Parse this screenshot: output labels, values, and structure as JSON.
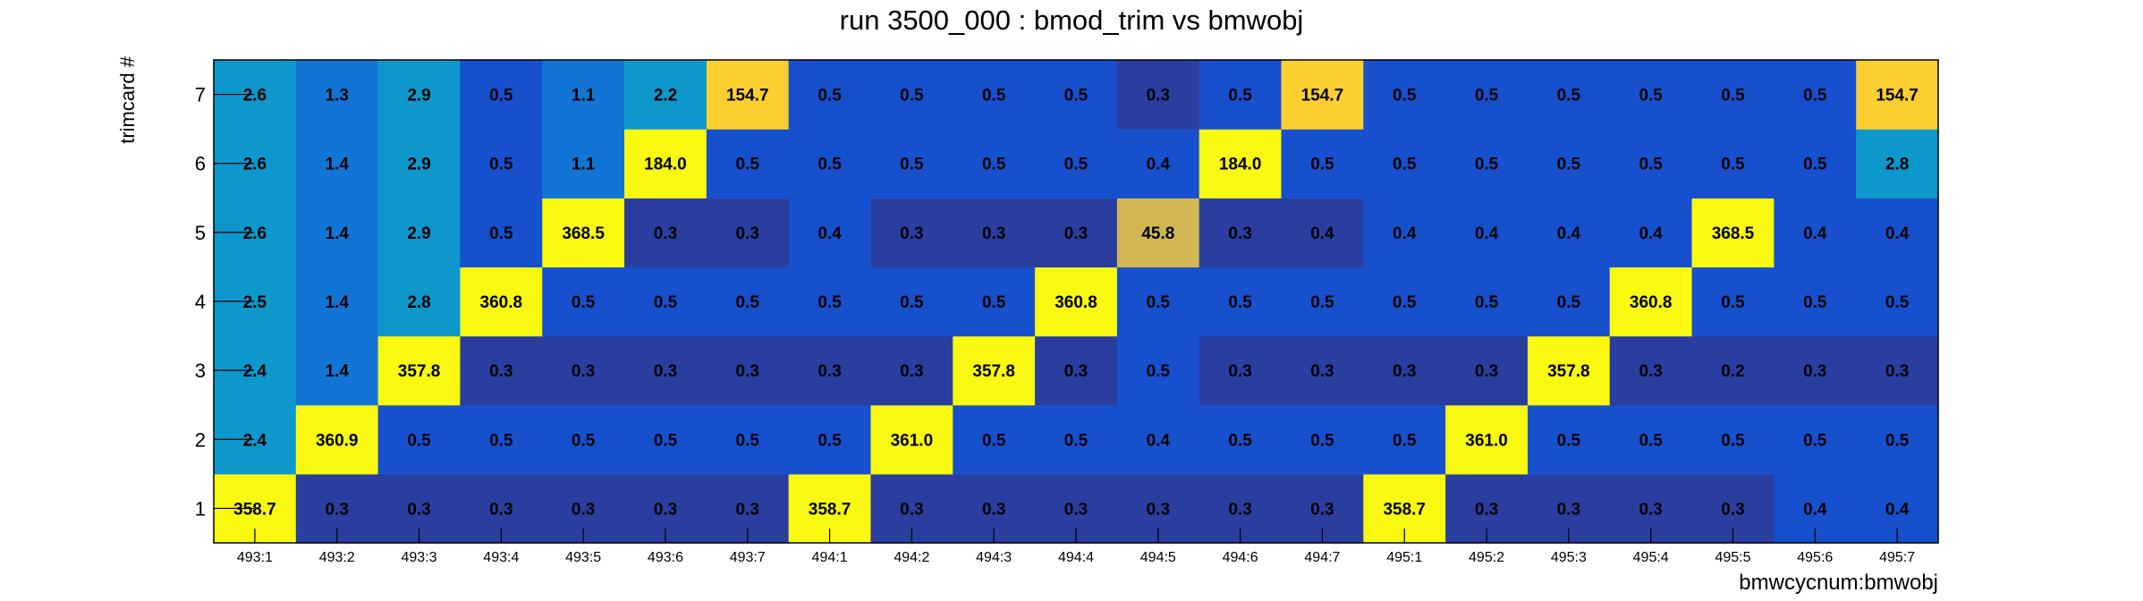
{
  "chart_data": {
    "type": "heatmap",
    "title": "run 3500_000 : bmod_trim vs bmwobj",
    "xlabel": "bmwcycnum:bmwobj",
    "ylabel": "trimcard #",
    "x_categories": [
      "493:1",
      "493:2",
      "493:3",
      "493:4",
      "493:5",
      "493:6",
      "493:7",
      "494:1",
      "494:2",
      "494:3",
      "494:4",
      "494:5",
      "494:6",
      "494:7",
      "495:1",
      "495:2",
      "495:3",
      "495:4",
      "495:5",
      "495:6",
      "495:7"
    ],
    "y_categories": [
      "1",
      "2",
      "3",
      "4",
      "5",
      "6",
      "7"
    ],
    "value_labels": [
      [
        "358.7",
        "0.3",
        "0.3",
        "0.3",
        "0.3",
        "0.3",
        "0.3",
        "358.7",
        "0.3",
        "0.3",
        "0.3",
        "0.3",
        "0.3",
        "0.3",
        "358.7",
        "0.3",
        "0.3",
        "0.3",
        "0.3",
        "0.4",
        "0.4"
      ],
      [
        "2.4",
        "360.9",
        "0.5",
        "0.5",
        "0.5",
        "0.5",
        "0.5",
        "0.5",
        "361.0",
        "0.5",
        "0.5",
        "0.4",
        "0.5",
        "0.5",
        "0.5",
        "361.0",
        "0.5",
        "0.5",
        "0.5",
        "0.5",
        "0.5"
      ],
      [
        "2.4",
        "1.4",
        "357.8",
        "0.3",
        "0.3",
        "0.3",
        "0.3",
        "0.3",
        "0.3",
        "357.8",
        "0.3",
        "0.5",
        "0.3",
        "0.3",
        "0.3",
        "0.3",
        "357.8",
        "0.3",
        "0.2",
        "0.3",
        "0.3"
      ],
      [
        "2.5",
        "1.4",
        "2.8",
        "360.8",
        "0.5",
        "0.5",
        "0.5",
        "0.5",
        "0.5",
        "0.5",
        "360.8",
        "0.5",
        "0.5",
        "0.5",
        "0.5",
        "0.5",
        "0.5",
        "360.8",
        "0.5",
        "0.5",
        "0.5"
      ],
      [
        "2.6",
        "1.4",
        "2.9",
        "0.5",
        "368.5",
        "0.3",
        "0.3",
        "0.4",
        "0.3",
        "0.3",
        "0.3",
        "45.8",
        "0.3",
        "0.4",
        "0.4",
        "0.4",
        "0.4",
        "0.4",
        "368.5",
        "0.4",
        "0.4"
      ],
      [
        "2.6",
        "1.4",
        "2.9",
        "0.5",
        "1.1",
        "184.0",
        "0.5",
        "0.5",
        "0.5",
        "0.5",
        "0.5",
        "0.4",
        "184.0",
        "0.5",
        "0.5",
        "0.5",
        "0.5",
        "0.5",
        "0.5",
        "0.5",
        "2.8"
      ],
      [
        "2.6",
        "1.3",
        "2.9",
        "0.5",
        "1.1",
        "2.2",
        "154.7",
        "0.5",
        "0.5",
        "0.5",
        "0.5",
        "0.3",
        "0.5",
        "154.7",
        "0.5",
        "0.5",
        "0.5",
        "0.5",
        "0.5",
        "0.5",
        "154.7"
      ]
    ],
    "cell_colors": [
      [
        "#f8f810",
        "#2a3ea0",
        "#2a3ea0",
        "#2a3ea0",
        "#2a3ea0",
        "#2a3ea0",
        "#2a3ea0",
        "#f8f810",
        "#2a3ea0",
        "#2a3ea0",
        "#2a3ea0",
        "#2a3ea0",
        "#2a3ea0",
        "#2a3ea0",
        "#f8f810",
        "#2a3ea0",
        "#2a3ea0",
        "#2a3ea0",
        "#2a3ea0",
        "#1750cc",
        "#1750cc"
      ],
      [
        "#0e97cb",
        "#f8f810",
        "#1750cc",
        "#1750cc",
        "#1750cc",
        "#1750cc",
        "#1750cc",
        "#1750cc",
        "#f8f810",
        "#1750cc",
        "#1750cc",
        "#1750cc",
        "#1750cc",
        "#1750cc",
        "#1750cc",
        "#f8f810",
        "#1750cc",
        "#1750cc",
        "#1750cc",
        "#1750cc",
        "#1750cc"
      ],
      [
        "#0e97cb",
        "#1275d6",
        "#f8f810",
        "#2a3ea0",
        "#2a3ea0",
        "#2a3ea0",
        "#2a3ea0",
        "#2a3ea0",
        "#2a3ea0",
        "#f8f810",
        "#2a3ea0",
        "#1750cc",
        "#2a3ea0",
        "#2a3ea0",
        "#2a3ea0",
        "#2a3ea0",
        "#f8f810",
        "#2a3ea0",
        "#2a3ea0",
        "#2a3ea0",
        "#2a3ea0"
      ],
      [
        "#0e97cb",
        "#1275d6",
        "#0e97cb",
        "#f8f810",
        "#1750cc",
        "#1750cc",
        "#1750cc",
        "#1750cc",
        "#1750cc",
        "#1750cc",
        "#f8f810",
        "#1750cc",
        "#1750cc",
        "#1750cc",
        "#1750cc",
        "#1750cc",
        "#1750cc",
        "#f8f810",
        "#1750cc",
        "#1750cc",
        "#1750cc"
      ],
      [
        "#0e97cb",
        "#1275d6",
        "#0e97cb",
        "#1750cc",
        "#f8f810",
        "#2a3ea0",
        "#2a3ea0",
        "#1750cc",
        "#2a3ea0",
        "#2a3ea0",
        "#2a3ea0",
        "#d1b651",
        "#2a3ea0",
        "#2a3ea0",
        "#1750cc",
        "#1750cc",
        "#1750cc",
        "#1750cc",
        "#f8f810",
        "#1750cc",
        "#1750cc"
      ],
      [
        "#0e97cb",
        "#1275d6",
        "#0e97cb",
        "#1750cc",
        "#1275d6",
        "#f8f810",
        "#1750cc",
        "#1750cc",
        "#1750cc",
        "#1750cc",
        "#1750cc",
        "#1750cc",
        "#f8f810",
        "#1750cc",
        "#1750cc",
        "#1750cc",
        "#1750cc",
        "#1750cc",
        "#1750cc",
        "#1750cc",
        "#0e97cb"
      ],
      [
        "#0e97cb",
        "#1275d6",
        "#0e97cb",
        "#1750cc",
        "#1275d6",
        "#0e97cb",
        "#fccf30",
        "#1750cc",
        "#1750cc",
        "#1750cc",
        "#1750cc",
        "#2a3ea0",
        "#1750cc",
        "#fccf30",
        "#1750cc",
        "#1750cc",
        "#1750cc",
        "#1750cc",
        "#1750cc",
        "#1750cc",
        "#fccf30"
      ]
    ],
    "legend": "none",
    "grid": false
  }
}
